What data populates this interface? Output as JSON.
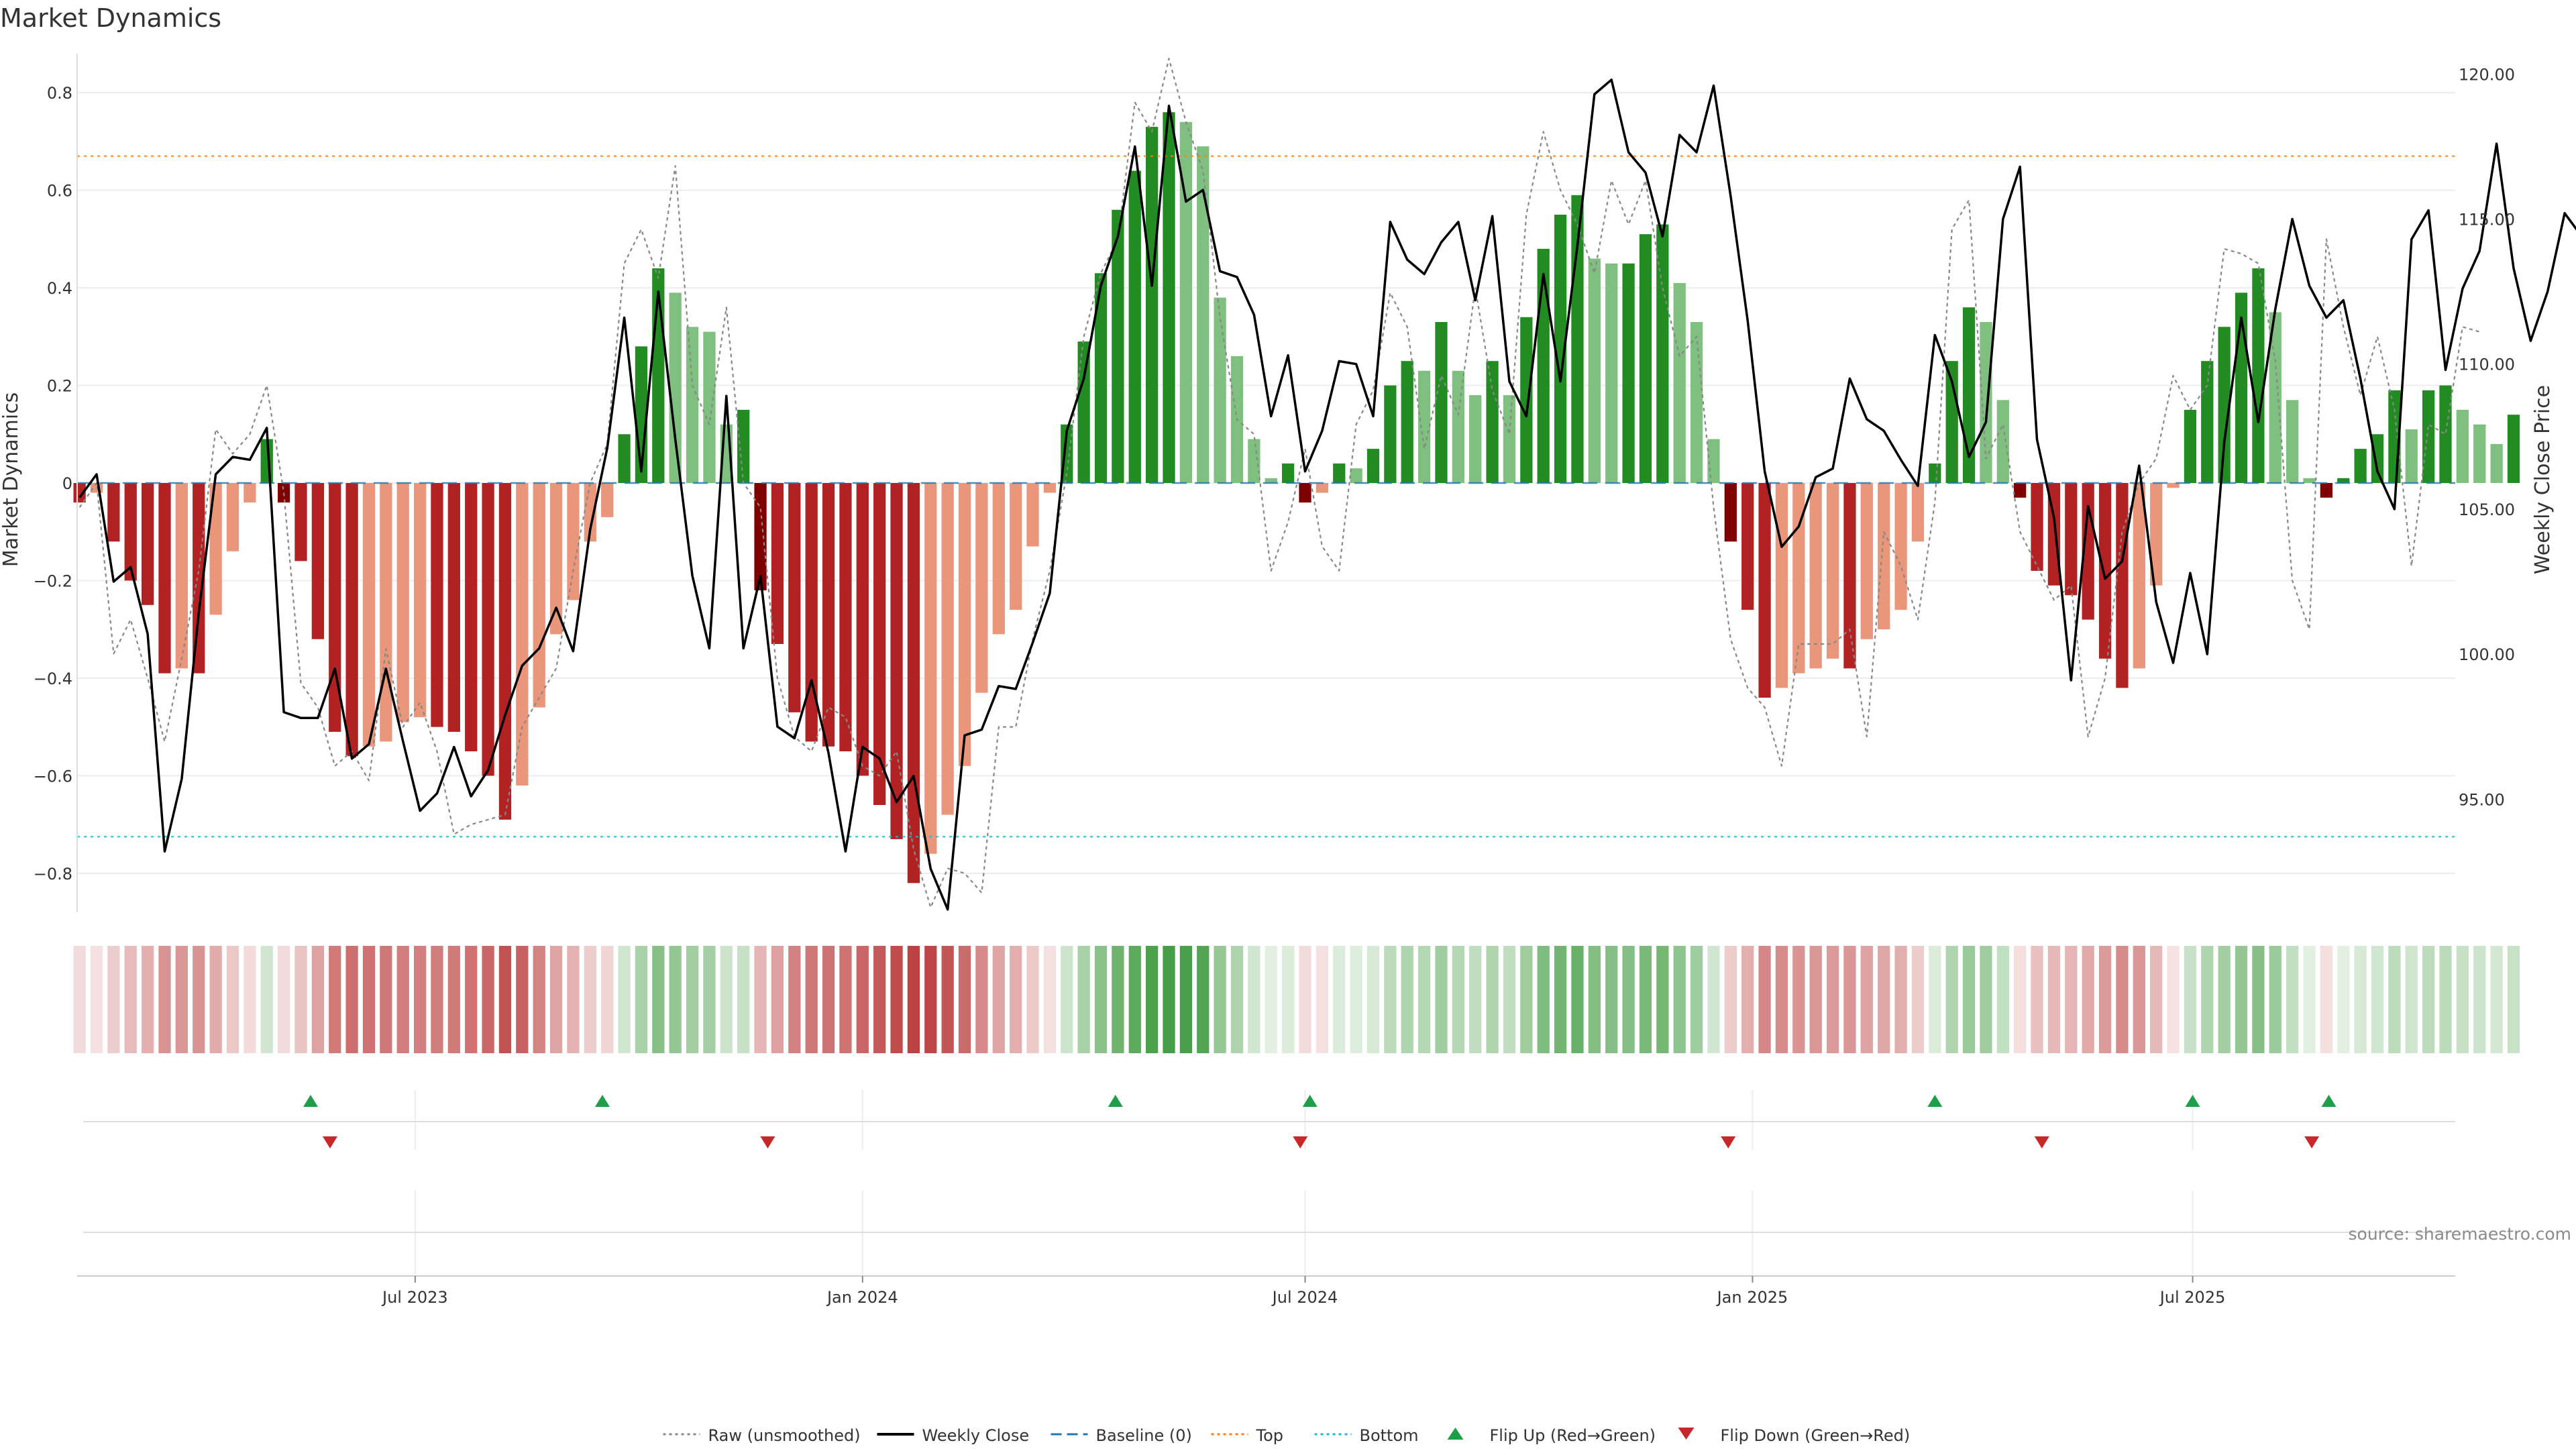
{
  "chart_data": {
    "type": "bar",
    "title": "Market Dynamics",
    "ylabel_left": "Market Dynamics",
    "ylabel_right": "Weekly Close Price",
    "source": "source: sharemaestro.com",
    "ylim_left": [
      -0.88,
      0.88
    ],
    "ylim_right": [
      91.1,
      120.7
    ],
    "yticks_left": [
      "0.8",
      "0.6",
      "0.4",
      "0.2",
      "0",
      "−0.2",
      "−0.4",
      "−0.6",
      "−0.8"
    ],
    "yticks_left_values": [
      0.8,
      0.6,
      0.4,
      0.2,
      0,
      -0.2,
      -0.4,
      -0.6,
      -0.8
    ],
    "yticks_right": [
      "120.00",
      "115.00",
      "110.00",
      "105.00",
      "100.00",
      "95.00"
    ],
    "yticks_right_values": [
      120,
      115,
      110,
      105,
      100,
      95
    ],
    "x_start": "2023-02-12",
    "x_end": "2025-10-17",
    "xticks": [
      {
        "label": "Jul 2023",
        "date": "2023-07-01"
      },
      {
        "label": "Jan 2024",
        "date": "2024-01-01"
      },
      {
        "label": "Jul 2024",
        "date": "2024-07-01"
      },
      {
        "label": "Jan 2025",
        "date": "2025-01-01"
      },
      {
        "label": "Jul 2025",
        "date": "2025-07-01"
      }
    ],
    "weeks_start": "2023-02-13",
    "bars": [
      -0.04,
      -0.02,
      -0.12,
      -0.2,
      -0.25,
      -0.39,
      -0.38,
      -0.39,
      -0.27,
      -0.14,
      -0.04,
      0.09,
      -0.04,
      -0.16,
      -0.32,
      -0.51,
      -0.56,
      -0.54,
      -0.53,
      -0.49,
      -0.48,
      -0.5,
      -0.51,
      -0.55,
      -0.6,
      -0.69,
      -0.62,
      -0.46,
      -0.31,
      -0.24,
      -0.12,
      -0.07,
      0.1,
      0.28,
      0.44,
      0.39,
      0.32,
      0.31,
      0.12,
      0.15,
      -0.22,
      -0.33,
      -0.47,
      -0.53,
      -0.54,
      -0.55,
      -0.6,
      -0.66,
      -0.73,
      -0.82,
      -0.76,
      -0.68,
      -0.58,
      -0.43,
      -0.31,
      -0.26,
      -0.13,
      -0.02,
      0.12,
      0.29,
      0.43,
      0.56,
      0.64,
      0.73,
      0.76,
      0.74,
      0.69,
      0.38,
      0.26,
      0.09,
      0.01,
      0.04,
      -0.04,
      -0.02,
      0.04,
      0.03,
      0.07,
      0.2,
      0.25,
      0.23,
      0.33,
      0.23,
      0.18,
      0.25,
      0.18,
      0.34,
      0.48,
      0.55,
      0.59,
      0.46,
      0.45,
      0.45,
      0.51,
      0.53,
      0.41,
      0.33,
      0.09,
      -0.12,
      -0.26,
      -0.44,
      -0.42,
      -0.39,
      -0.38,
      -0.36,
      -0.38,
      -0.32,
      -0.3,
      -0.26,
      -0.12,
      0.04,
      0.25,
      0.36,
      0.33,
      0.17,
      -0.03,
      -0.18,
      -0.21,
      -0.23,
      -0.28,
      -0.36,
      -0.42,
      -0.38,
      -0.21,
      -0.01,
      0.15,
      0.25,
      0.32,
      0.39,
      0.44,
      0.35,
      0.17,
      0.01,
      -0.03,
      0.01,
      0.07,
      0.1,
      0.19,
      0.11,
      0.19,
      0.2,
      0.15,
      0.12,
      0.08,
      0.14
    ],
    "series": [
      {
        "name": "Raw (unsmoothed)",
        "style": "dotted",
        "color": "#888888",
        "axis": "left",
        "values": [
          -0.05,
          0.0,
          -0.35,
          -0.28,
          -0.4,
          -0.53,
          -0.36,
          -0.18,
          0.11,
          0.06,
          0.1,
          0.2,
          -0.02,
          -0.41,
          -0.46,
          -0.58,
          -0.55,
          -0.61,
          -0.34,
          -0.5,
          -0.45,
          -0.55,
          -0.72,
          -0.7,
          -0.69,
          -0.68,
          -0.5,
          -0.44,
          -0.38,
          -0.18,
          0.0,
          0.08,
          0.45,
          0.52,
          0.42,
          0.65,
          0.2,
          0.12,
          0.36,
          0.0,
          -0.05,
          -0.4,
          -0.52,
          -0.55,
          -0.46,
          -0.48,
          -0.58,
          -0.6,
          -0.55,
          -0.75,
          -0.87,
          -0.79,
          -0.8,
          -0.84,
          -0.5,
          -0.5,
          -0.32,
          -0.18,
          0.02,
          0.3,
          0.43,
          0.5,
          0.78,
          0.72,
          0.87,
          0.74,
          0.64,
          0.34,
          0.13,
          0.1,
          -0.18,
          -0.08,
          0.07,
          -0.13,
          -0.18,
          0.12,
          0.19,
          0.39,
          0.32,
          0.07,
          0.22,
          0.14,
          0.4,
          0.19,
          0.1,
          0.55,
          0.72,
          0.6,
          0.53,
          0.43,
          0.62,
          0.53,
          0.62,
          0.4,
          0.26,
          0.3,
          -0.05,
          -0.32,
          -0.42,
          -0.46,
          -0.58,
          -0.33,
          -0.33,
          -0.33,
          -0.3,
          -0.52,
          -0.1,
          -0.17,
          -0.28,
          -0.04,
          0.52,
          0.58,
          0.05,
          0.12,
          -0.1,
          -0.17,
          -0.24,
          -0.21,
          -0.52,
          -0.4,
          -0.1,
          0.0,
          0.05,
          0.22,
          0.15,
          0.2,
          0.48,
          0.47,
          0.45,
          0.25,
          -0.2,
          -0.3,
          0.5,
          0.32,
          0.18,
          0.3,
          0.15,
          -0.17,
          0.12,
          0.1,
          0.32,
          0.31
        ]
      },
      {
        "name": "Weekly Close",
        "style": "solid",
        "color": "#000000",
        "axis": "right",
        "values": [
          105.4,
          106.2,
          102.5,
          103.0,
          100.7,
          93.2,
          95.7,
          101.4,
          106.2,
          106.8,
          106.7,
          107.8,
          98.0,
          97.8,
          97.8,
          99.5,
          96.4,
          96.9,
          99.5,
          97.0,
          94.6,
          95.2,
          96.8,
          95.1,
          96.0,
          97.9,
          99.6,
          100.2,
          101.6,
          100.1,
          104.3,
          107.1,
          111.6,
          106.3,
          112.5,
          107.4,
          102.7,
          100.2,
          108.9,
          100.2,
          102.7,
          97.5,
          97.1,
          99.1,
          96.6,
          93.2,
          96.8,
          96.4,
          94.9,
          95.8,
          92.6,
          91.2,
          97.2,
          97.4,
          98.9,
          98.8,
          100.4,
          102.1,
          107.7,
          109.5,
          112.7,
          114.4,
          117.5,
          112.7,
          118.9,
          115.6,
          116.0,
          113.2,
          113.0,
          111.7,
          108.2,
          110.3,
          106.3,
          107.7,
          110.1,
          110.0,
          108.2,
          114.9,
          113.6,
          113.1,
          114.2,
          114.9,
          112.2,
          115.1,
          109.4,
          108.2,
          113.1,
          109.4,
          114.1,
          119.3,
          119.8,
          117.3,
          116.6,
          114.4,
          117.9,
          117.3,
          119.6,
          115.8,
          111.5,
          106.3,
          103.7,
          104.4,
          106.1,
          106.4,
          109.5,
          108.1,
          107.7,
          106.7,
          105.8,
          111.0,
          109.4,
          106.8,
          108.0,
          115.0,
          116.8,
          107.4,
          104.7,
          99.1,
          105.1,
          102.6,
          103.2,
          106.5,
          101.8,
          99.7,
          102.8,
          100.0,
          107.3,
          111.6,
          108.0,
          111.9,
          115.0,
          112.7,
          111.6,
          112.2,
          109.5,
          106.3,
          105.0,
          114.3,
          115.3,
          109.8,
          112.6,
          113.9,
          117.6,
          113.3,
          110.8,
          112.5,
          115.2,
          114.4
        ]
      }
    ],
    "reference_lines": [
      {
        "name": "Baseline (0)",
        "value": 0,
        "style": "dashed",
        "color": "#1f77b4"
      },
      {
        "name": "Top",
        "value": 0.67,
        "style": "dotted",
        "color": "#ff7f0e"
      },
      {
        "name": "Bottom",
        "value": -0.725,
        "style": "dotted",
        "color": "#17becf"
      }
    ],
    "flip_up_dates": [
      "2023-05-19",
      "2023-09-16",
      "2024-04-14",
      "2024-07-03",
      "2025-03-17",
      "2025-07-01",
      "2025-08-26"
    ],
    "flip_down_dates": [
      "2023-05-27",
      "2023-11-23",
      "2024-06-29",
      "2024-12-22",
      "2025-04-30",
      "2025-08-19"
    ],
    "legend": [
      "Raw (unsmoothed)",
      "Weekly Close",
      "Baseline (0)",
      "Top",
      "Bottom",
      "Flip Up (Red→Green)",
      "Flip Down (Green→Red)"
    ],
    "colors": {
      "strong_green": "#228b22",
      "light_green": "#7fbf7f",
      "strong_red": "#b22222",
      "light_red": "#e9967a",
      "dark_red": "#800000",
      "flip_up": "#1e9e48",
      "flip_down": "#c8282a"
    }
  }
}
